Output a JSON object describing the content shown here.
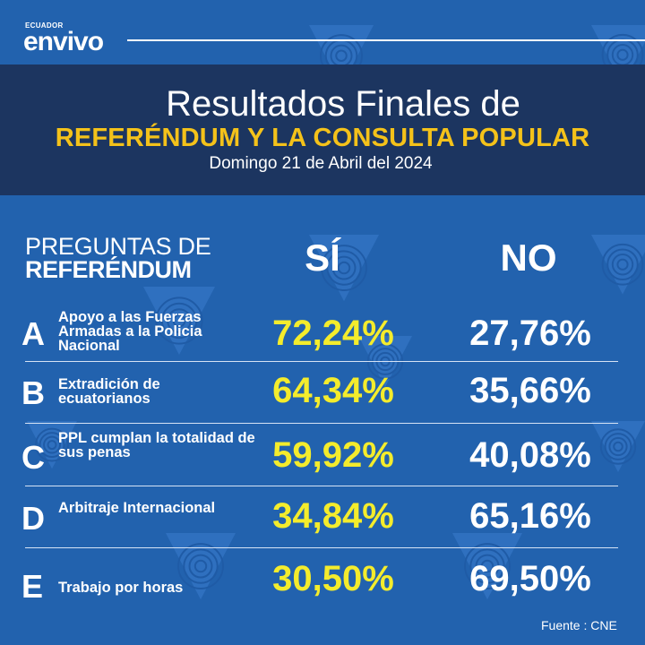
{
  "logo": {
    "small_text": "ECUADOR",
    "main_text": "envivo"
  },
  "header": {
    "title_line1": "Resultados Finales de",
    "title_line2": "REFERÉNDUM Y LA CONSULTA POPULAR",
    "date": "Domingo 21 de Abril del 2024"
  },
  "columns": {
    "questions_line1": "PREGUNTAS DE",
    "questions_line2": "REFERÉNDUM",
    "yes": "SÍ",
    "no": "NO"
  },
  "rows": [
    {
      "letter": "A",
      "text": "Apoyo a las Fuerzas Armadas a la Policia Nacional",
      "yes": "72,24%",
      "no": "27,76%"
    },
    {
      "letter": "B",
      "text": "Extradición de ecuatorianos",
      "yes": "64,34%",
      "no": "35,66%"
    },
    {
      "letter": "C",
      "text": "PPL cumplan la totalidad de sus penas",
      "yes": "59,92%",
      "no": "40,08%"
    },
    {
      "letter": "D",
      "text": "Arbitraje Internacional",
      "yes": "34,84%",
      "no": "65,16%"
    },
    {
      "letter": "E",
      "text": "Trabajo por horas",
      "yes": "30,50%",
      "no": "69,50%"
    }
  ],
  "source": "Fuente : CNE",
  "colors": {
    "background": "#2262ae",
    "header_band": "#1c3560",
    "accent_yellow": "#f4c21a",
    "yes_yellow": "#f4ec2c"
  }
}
